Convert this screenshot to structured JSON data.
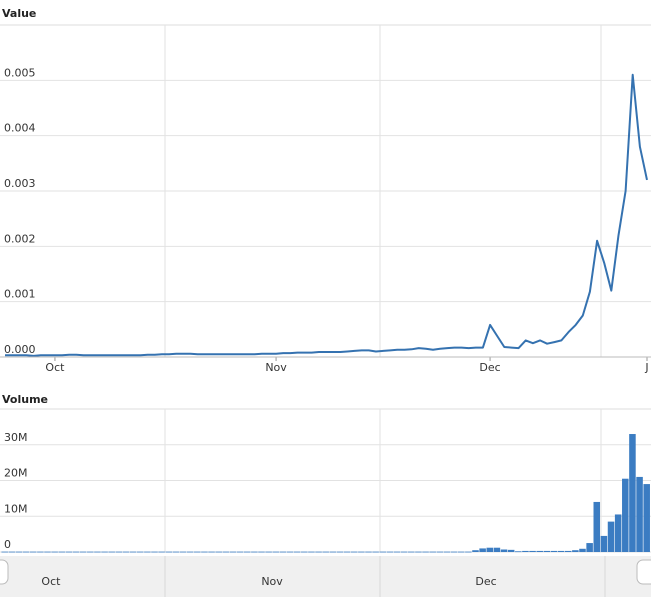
{
  "chart_data": [
    {
      "type": "line",
      "title": "Value",
      "categories": [
        null,
        null,
        null,
        null,
        null,
        null,
        null,
        "Oct",
        null,
        null,
        null,
        null,
        null,
        null,
        null,
        null,
        null,
        null,
        null,
        null,
        null,
        null,
        null,
        null,
        null,
        null,
        null,
        null,
        null,
        null,
        null,
        null,
        null,
        null,
        null,
        null,
        null,
        null,
        "Nov",
        null,
        null,
        null,
        null,
        null,
        null,
        null,
        null,
        null,
        null,
        null,
        null,
        null,
        null,
        null,
        null,
        null,
        null,
        null,
        null,
        null,
        null,
        null,
        null,
        null,
        null,
        null,
        null,
        null,
        "Dec",
        null,
        null,
        null,
        null,
        null,
        null,
        null,
        null,
        null,
        null,
        null,
        null,
        null,
        null,
        null,
        null,
        null,
        null,
        null,
        null,
        null,
        "J"
      ],
      "series": [
        {
          "color": "#3572b0",
          "values": [
            3e-05,
            3e-05,
            3e-05,
            3e-05,
            2e-05,
            3e-05,
            3e-05,
            3e-05,
            3e-05,
            4e-05,
            4e-05,
            3e-05,
            3e-05,
            3e-05,
            3e-05,
            3e-05,
            3e-05,
            3e-05,
            3e-05,
            3e-05,
            4e-05,
            4e-05,
            5e-05,
            5e-05,
            6e-05,
            6e-05,
            6e-05,
            5e-05,
            5e-05,
            5e-05,
            5e-05,
            5e-05,
            5e-05,
            5e-05,
            5e-05,
            5e-05,
            6e-05,
            6e-05,
            6e-05,
            7e-05,
            7e-05,
            8e-05,
            8e-05,
            8e-05,
            9e-05,
            9e-05,
            9e-05,
            9e-05,
            0.0001,
            0.00011,
            0.00012,
            0.00012,
            0.0001,
            0.00011,
            0.00012,
            0.00013,
            0.00013,
            0.00014,
            0.00016,
            0.00015,
            0.00013,
            0.00015,
            0.00016,
            0.00017,
            0.00017,
            0.00016,
            0.00017,
            0.00017,
            0.00058,
            0.00038,
            0.00018,
            0.00017,
            0.00016,
            0.0003,
            0.00025,
            0.0003,
            0.00024,
            0.00027,
            0.0003,
            0.00045,
            0.00058,
            0.00075,
            0.00118,
            0.0021,
            0.0017,
            0.0012,
            0.0022,
            0.003,
            0.0051,
            0.0038,
            0.0032
          ]
        }
      ],
      "ylim": [
        0,
        0.006
      ],
      "yticks": [
        {
          "value": 0,
          "label": "0.000"
        },
        0.001,
        0.002,
        0.003,
        0.004,
        0.005
      ]
    },
    {
      "type": "bar",
      "title": "Volume",
      "categories": [
        null,
        null,
        null,
        null,
        null,
        null,
        null,
        "Oct",
        null,
        null,
        null,
        null,
        null,
        null,
        null,
        null,
        null,
        null,
        null,
        null,
        null,
        null,
        null,
        null,
        null,
        null,
        null,
        null,
        null,
        null,
        null,
        null,
        null,
        null,
        null,
        null,
        null,
        null,
        "Nov",
        null,
        null,
        null,
        null,
        null,
        null,
        null,
        null,
        null,
        null,
        null,
        null,
        null,
        null,
        null,
        null,
        null,
        null,
        null,
        null,
        null,
        null,
        null,
        null,
        null,
        null,
        null,
        null,
        null,
        "Dec",
        null,
        null,
        null,
        null,
        null,
        null,
        null,
        null,
        null,
        null,
        null,
        null,
        null,
        null,
        null,
        null,
        null,
        null,
        null,
        null,
        null,
        null
      ],
      "color": "#3b7cc2",
      "values": [
        100000,
        100000,
        100000,
        100000,
        100000,
        100000,
        100000,
        100000,
        100000,
        100000,
        100000,
        100000,
        100000,
        100000,
        100000,
        100000,
        100000,
        100000,
        100000,
        100000,
        100000,
        100000,
        100000,
        100000,
        100000,
        100000,
        100000,
        100000,
        100000,
        100000,
        100000,
        100000,
        100000,
        100000,
        100000,
        100000,
        100000,
        100000,
        100000,
        100000,
        100000,
        100000,
        100000,
        100000,
        100000,
        100000,
        100000,
        100000,
        100000,
        100000,
        100000,
        100000,
        100000,
        100000,
        100000,
        100000,
        100000,
        100000,
        100000,
        100000,
        100000,
        100000,
        100000,
        100000,
        100000,
        100000,
        500000,
        1000000,
        1200000,
        1200000,
        700000,
        600000,
        200000,
        300000,
        300000,
        300000,
        300000,
        300000,
        300000,
        300000,
        500000,
        900000,
        2500000,
        14000000,
        4500000,
        8500000,
        10500000,
        20500000,
        33000000,
        21000000,
        19000000
      ],
      "ylim": [
        0,
        40000000
      ],
      "yticks": [
        0,
        {
          "value": 10000000,
          "label": "10M"
        },
        {
          "value": 20000000,
          "label": "20M"
        },
        {
          "value": 30000000,
          "label": "30M"
        }
      ]
    }
  ]
}
